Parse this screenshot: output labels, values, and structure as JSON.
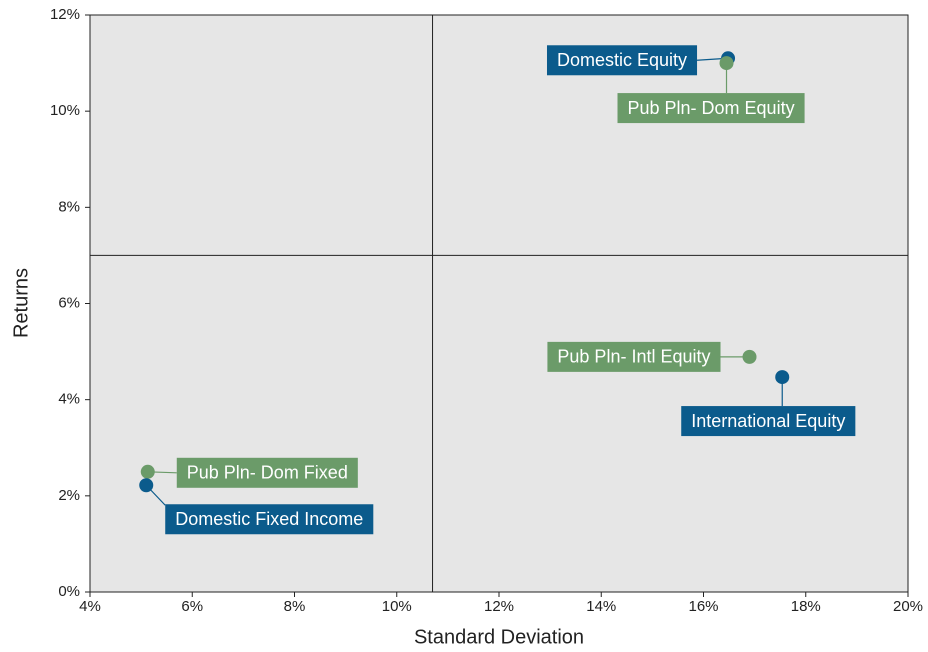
{
  "chart_data": {
    "type": "scatter",
    "x_label": "Standard Deviation",
    "y_label": "Returns",
    "xlim": [
      4,
      20
    ],
    "xticks": [
      {
        "value": 4,
        "label": "4%"
      },
      {
        "value": 6,
        "label": "6%"
      },
      {
        "value": 8,
        "label": "8%"
      },
      {
        "value": 10,
        "label": "10%"
      },
      {
        "value": 12,
        "label": "12%"
      },
      {
        "value": 14,
        "label": "14%"
      },
      {
        "value": 16,
        "label": "16%"
      },
      {
        "value": 18,
        "label": "18%"
      },
      {
        "value": 20,
        "label": "20%"
      }
    ],
    "ylim": [
      0,
      12
    ],
    "yticks": [
      {
        "value": 0,
        "label": "0%"
      },
      {
        "value": 2,
        "label": "2%"
      },
      {
        "value": 4,
        "label": "4%"
      },
      {
        "value": 6,
        "label": "6%"
      },
      {
        "value": 8,
        "label": "8%"
      },
      {
        "value": 10,
        "label": "10%"
      },
      {
        "value": 12,
        "label": "12%"
      }
    ],
    "quadrant_x": 10.7,
    "quadrant_y": 7,
    "points": [
      {
        "label": "Domestic Equity",
        "x": 16.48,
        "y": 11.1,
        "color": "#0b5b8c"
      },
      {
        "label": "Pub Pln- Dom Equity",
        "x": 16.45,
        "y": 11.0,
        "color": "#6b9b69"
      },
      {
        "label": "Pub Pln- Intl Equity",
        "x": 16.9,
        "y": 4.89,
        "color": "#6b9b69"
      },
      {
        "label": "International Equity",
        "x": 17.54,
        "y": 4.47,
        "color": "#0b5b8c"
      },
      {
        "label": "Pub Pln- Dom Fixed",
        "x": 5.13,
        "y": 2.5,
        "color": "#6b9b69"
      },
      {
        "label": "Domestic Fixed Income",
        "x": 5.1,
        "y": 2.22,
        "color": "#0b5b8c"
      }
    ]
  }
}
